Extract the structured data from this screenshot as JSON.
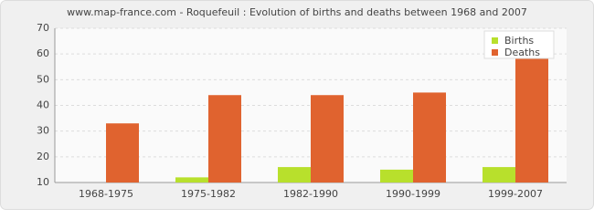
{
  "chart_data": {
    "type": "bar",
    "title": "www.map-france.com - Roquefeuil : Evolution of births and deaths between 1968 and 2007",
    "categories": [
      "1968-1975",
      "1975-1982",
      "1982-1990",
      "1990-1999",
      "1999-2007"
    ],
    "series": [
      {
        "name": "Births",
        "color": "#b8e02c",
        "values": [
          10,
          12,
          16,
          15,
          16
        ]
      },
      {
        "name": "Deaths",
        "color": "#e0632f",
        "values": [
          33,
          44,
          44,
          45,
          59
        ]
      }
    ],
    "ylim": [
      10,
      70
    ],
    "yticks": [
      10,
      20,
      30,
      40,
      50,
      60,
      70
    ],
    "grid": true,
    "legend": "top-right"
  }
}
